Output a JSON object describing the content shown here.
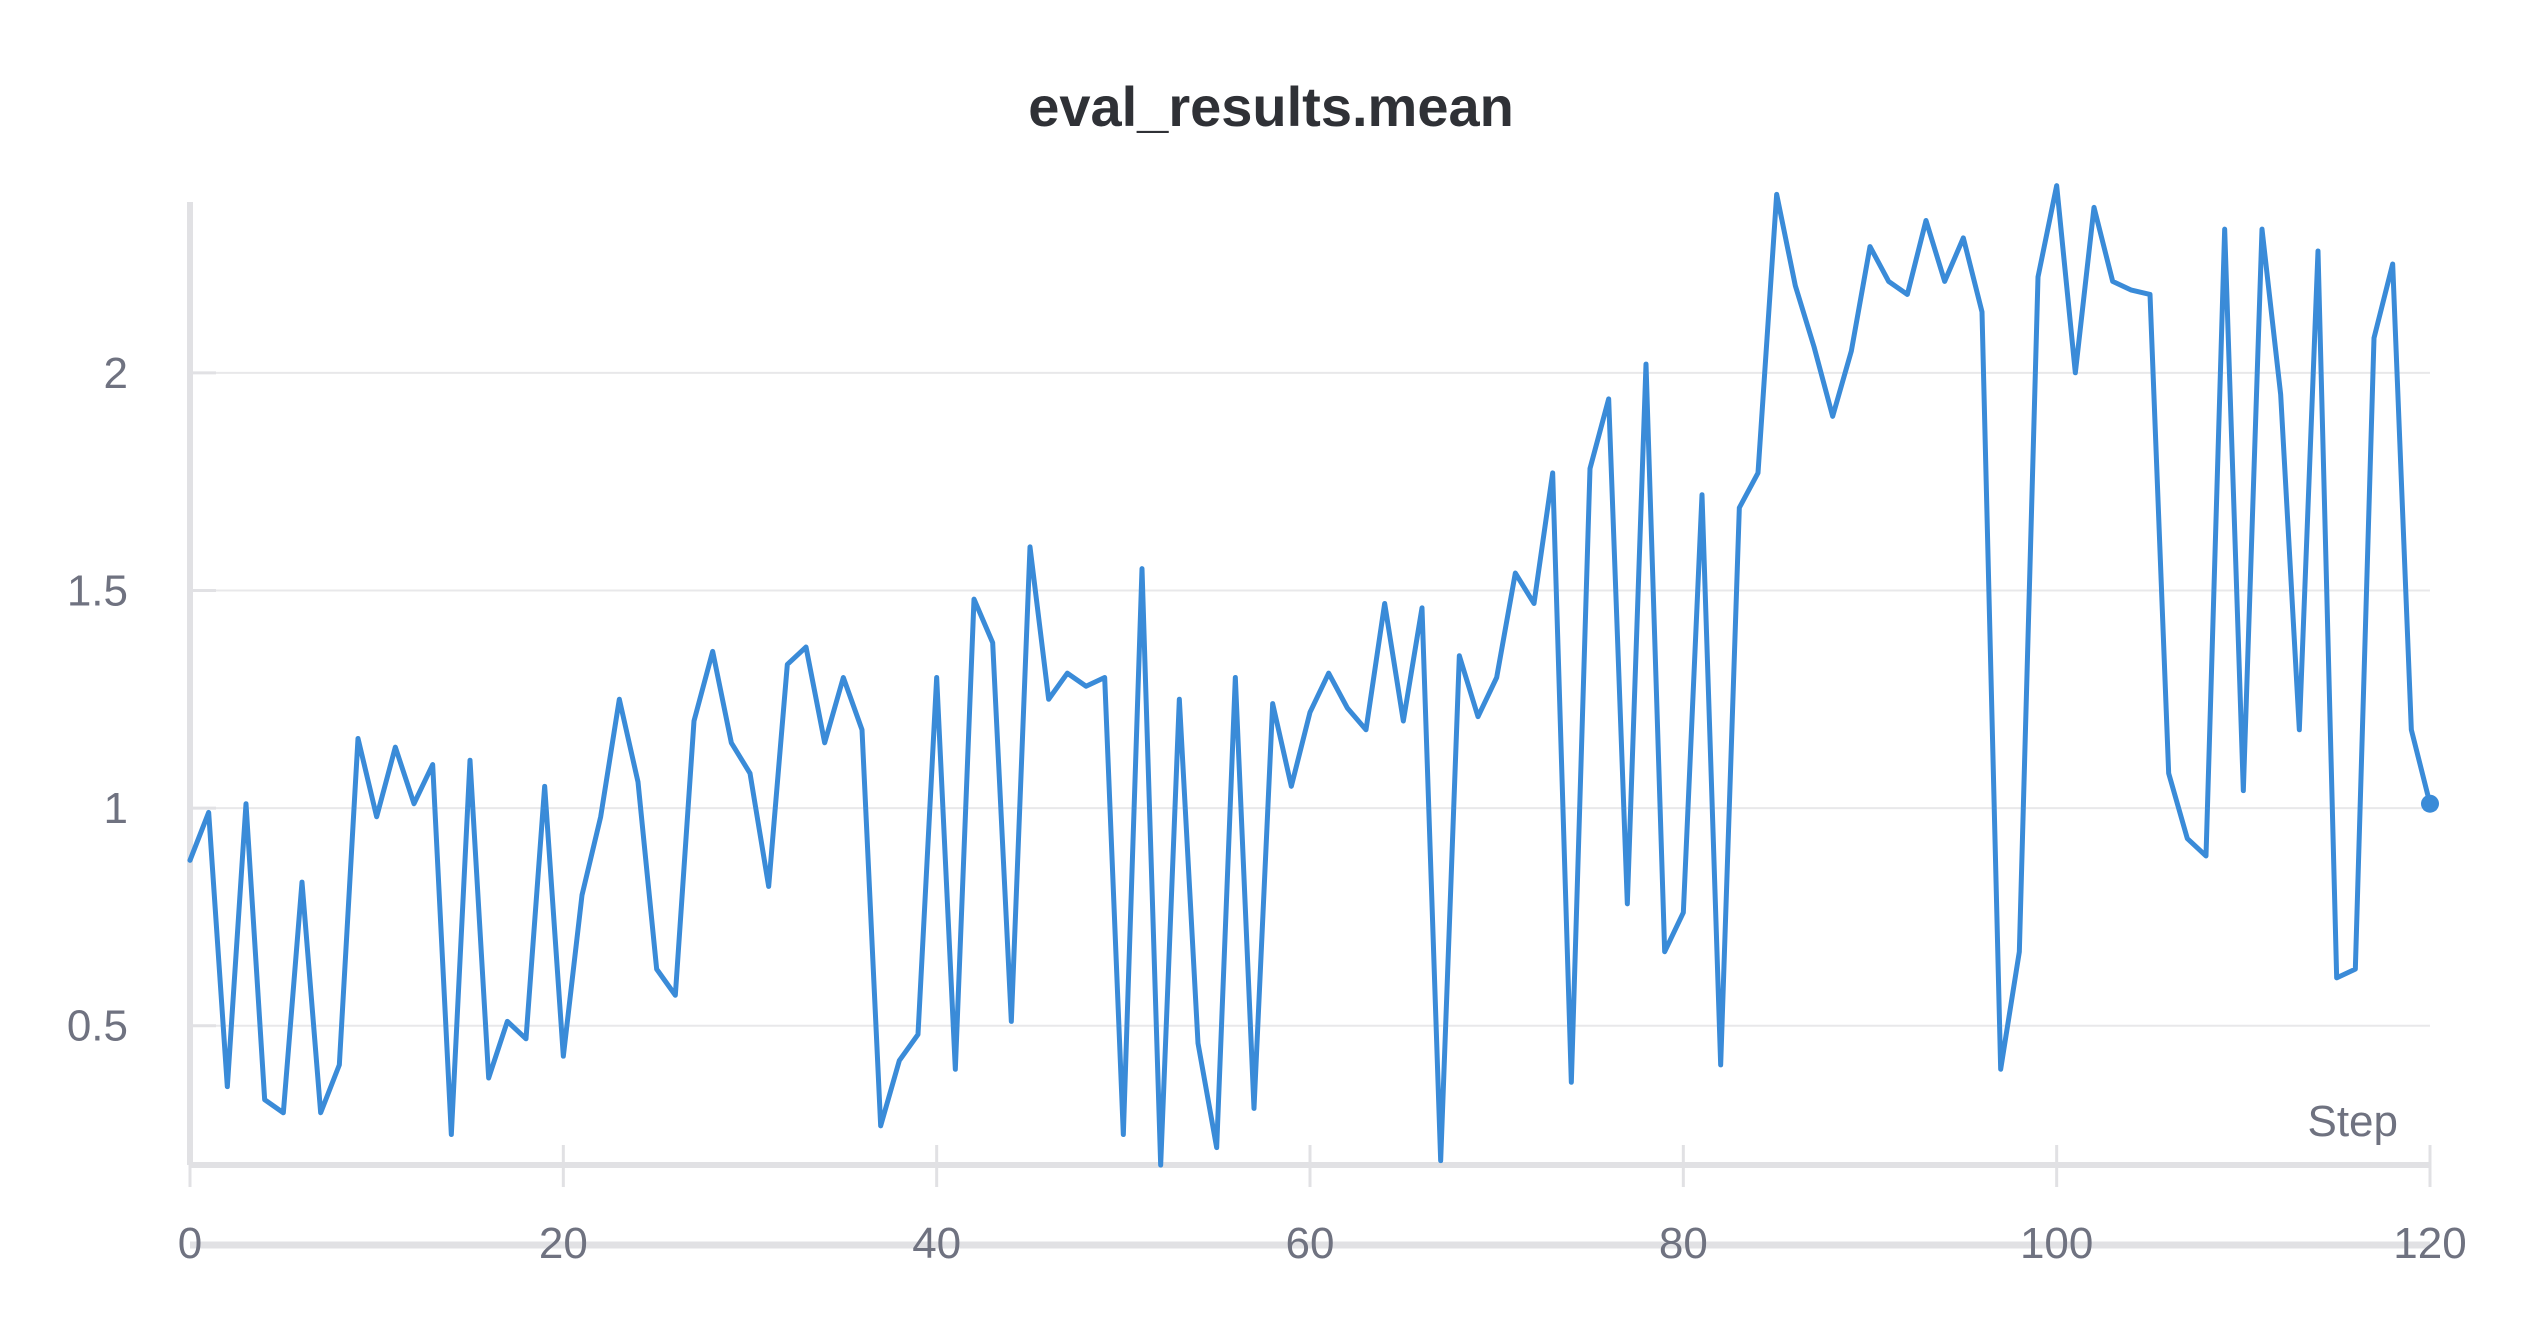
{
  "chart_data": {
    "type": "line",
    "title": "eval_results.mean",
    "xlabel": "Step",
    "ylabel": "",
    "xlim": [
      0,
      120
    ],
    "ylim": [
      0.18,
      2.42
    ],
    "x_ticks": [
      0,
      20,
      40,
      60,
      80,
      100,
      120
    ],
    "x_tick_labels": [
      "0",
      "20",
      "40",
      "60",
      "80",
      "100",
      "120"
    ],
    "y_ticks": [
      0.5,
      1,
      1.5,
      2
    ],
    "y_tick_labels": [
      "0.5",
      "1",
      "1.5",
      "2"
    ],
    "grid": true,
    "colors": {
      "line": "#3a8bd8",
      "grid": "#e8e8ea",
      "axis": "#e1e1e4",
      "title": "#2f3136",
      "tick": "#6f7280"
    },
    "series": [
      {
        "x": [
          0,
          1,
          2,
          3,
          4,
          5,
          6,
          7,
          8,
          9,
          10,
          11,
          12,
          13,
          14,
          15,
          16,
          17,
          18,
          19,
          20,
          21,
          22,
          23,
          24,
          25,
          26,
          27,
          28,
          29,
          30,
          31,
          32,
          33,
          34,
          35,
          36,
          37,
          38,
          39,
          40,
          41,
          42,
          43,
          44,
          45,
          46,
          47,
          48,
          49,
          50,
          51,
          52,
          53,
          54,
          55,
          56,
          57,
          58,
          59,
          60,
          61,
          62,
          63,
          64,
          65,
          66,
          67,
          68,
          69,
          70,
          71,
          72,
          73,
          74,
          75,
          76,
          77,
          78,
          79,
          80,
          81,
          82,
          83,
          84,
          85,
          86,
          87,
          88,
          89,
          90,
          91,
          92,
          93,
          94,
          95,
          96,
          97,
          98,
          99,
          100,
          101,
          102,
          103,
          104,
          105,
          106,
          107,
          108,
          109,
          110,
          111,
          112,
          113,
          114,
          115,
          116,
          117,
          118,
          119,
          120
        ],
        "values": [
          0.88,
          0.99,
          0.36,
          1.01,
          0.33,
          0.3,
          0.83,
          0.3,
          0.41,
          1.16,
          0.98,
          1.14,
          1.01,
          1.1,
          0.25,
          1.11,
          0.38,
          0.51,
          0.47,
          1.05,
          0.43,
          0.8,
          0.98,
          1.25,
          1.06,
          0.63,
          0.57,
          1.2,
          1.36,
          1.15,
          1.08,
          0.82,
          1.33,
          1.37,
          1.15,
          1.3,
          1.18,
          0.27,
          0.42,
          0.48,
          1.3,
          0.4,
          1.48,
          1.38,
          0.51,
          1.6,
          1.25,
          1.31,
          1.28,
          1.3,
          0.25,
          1.55,
          0.18,
          1.25,
          0.46,
          0.22,
          1.3,
          0.31,
          1.24,
          1.05,
          1.22,
          1.31,
          1.23,
          1.18,
          1.47,
          1.2,
          1.46,
          0.19,
          1.35,
          1.21,
          1.3,
          1.54,
          1.47,
          1.77,
          0.37,
          1.78,
          1.94,
          0.78,
          2.02,
          0.67,
          0.76,
          1.72,
          0.41,
          1.69,
          1.77,
          2.41,
          2.2,
          2.06,
          1.9,
          2.05,
          2.29,
          2.21,
          2.18,
          2.35,
          2.21,
          2.31,
          2.14,
          0.4,
          0.67,
          2.22,
          2.43,
          2.0,
          2.38,
          2.21,
          2.19,
          2.18,
          1.08,
          0.93,
          0.89,
          2.33,
          1.04,
          2.33,
          1.95,
          1.18,
          2.28,
          0.61,
          0.63,
          2.08,
          2.25,
          1.18,
          1.01
        ]
      }
    ]
  }
}
